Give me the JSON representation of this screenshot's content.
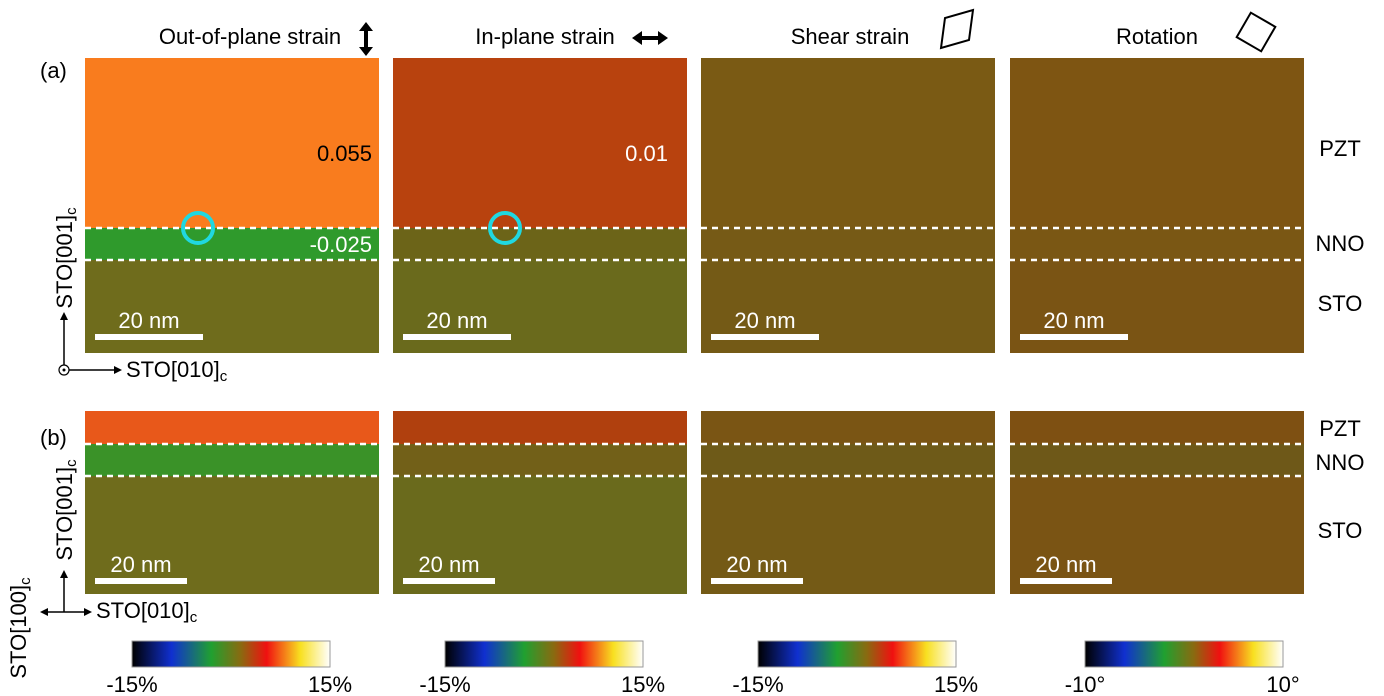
{
  "columns": [
    {
      "title": "Out-of-plane strain"
    },
    {
      "title": "In-plane strain"
    },
    {
      "title": "Shear strain"
    },
    {
      "title": "Rotation"
    }
  ],
  "rows": [
    {
      "label": "(a)",
      "annotations": [
        "0.055",
        "-0.025",
        "0.01"
      ],
      "layers": [
        "PZT",
        "NNO",
        "STO"
      ],
      "scale_bars": [
        "20 nm",
        "20 nm",
        "20 nm",
        "20 nm"
      ]
    },
    {
      "label": "(b)",
      "layers": [
        "PZT",
        "NNO",
        "STO"
      ],
      "scale_bars": [
        "20 nm",
        "20 nm",
        "20 nm",
        "20 nm"
      ]
    }
  ],
  "axes": [
    {
      "text": "STO[001]",
      "sub": "c"
    },
    {
      "text": "STO[010]",
      "sub": "c"
    },
    {
      "text": "STO[001]",
      "sub": "c"
    },
    {
      "text": "STO[010]",
      "sub": "c"
    },
    {
      "text": "STO[100]",
      "sub": "c"
    }
  ],
  "colorbars": [
    {
      "min": "-15%",
      "max": "15%"
    },
    {
      "min": "-15%",
      "max": "15%"
    },
    {
      "min": "-15%",
      "max": "15%"
    },
    {
      "min": "-10°",
      "max": "10°"
    }
  ]
}
